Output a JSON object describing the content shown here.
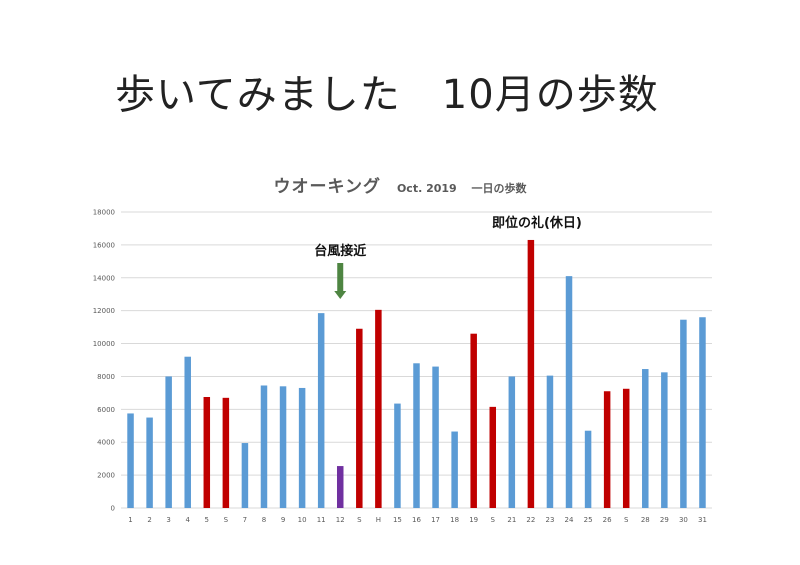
{
  "slide": {
    "title": "歩いてみました　10月の歩数"
  },
  "colors": {
    "normal": "#5b9bd5",
    "holiday": "#c00000",
    "typhoon": "#7030a0",
    "arrow": "#4e8542",
    "gridline": "#d9d9d9",
    "text": "#595959"
  },
  "chart_data": {
    "type": "bar",
    "title": "ウオーキング",
    "subtitle": "Oct. 2019　 一日の歩数",
    "xlabel": "",
    "ylabel": "",
    "ylim": [
      0,
      18000
    ],
    "yticks": [
      0,
      2000,
      4000,
      6000,
      8000,
      10000,
      12000,
      14000,
      16000,
      18000
    ],
    "grid": true,
    "legend": "none",
    "categories": [
      "1",
      "2",
      "3",
      "4",
      "5",
      "S",
      "7",
      "8",
      "9",
      "10",
      "11",
      "12",
      "S",
      "H",
      "15",
      "16",
      "17",
      "18",
      "19",
      "S",
      "21",
      "22",
      "23",
      "24",
      "25",
      "26",
      "S",
      "28",
      "29",
      "30",
      "31"
    ],
    "values": [
      5750,
      5500,
      8000,
      9200,
      6750,
      6700,
      3950,
      7450,
      7400,
      7300,
      11850,
      2550,
      10900,
      12050,
      6350,
      8800,
      8600,
      4650,
      10600,
      6150,
      8000,
      16300,
      8050,
      14100,
      4700,
      7100,
      7250,
      8450,
      8250,
      11450,
      11600
    ],
    "bar_types": [
      "normal",
      "normal",
      "normal",
      "normal",
      "holiday",
      "holiday",
      "normal",
      "normal",
      "normal",
      "normal",
      "normal",
      "typhoon",
      "holiday",
      "holiday",
      "normal",
      "normal",
      "normal",
      "normal",
      "holiday",
      "holiday",
      "normal",
      "holiday",
      "normal",
      "normal",
      "normal",
      "holiday",
      "holiday",
      "normal",
      "normal",
      "normal",
      "normal"
    ],
    "annotations": [
      {
        "text": "台風接近",
        "category_index": 11,
        "arrow": true
      },
      {
        "text": "即位の礼(休日)",
        "category_index": 21,
        "arrow": false
      }
    ]
  }
}
